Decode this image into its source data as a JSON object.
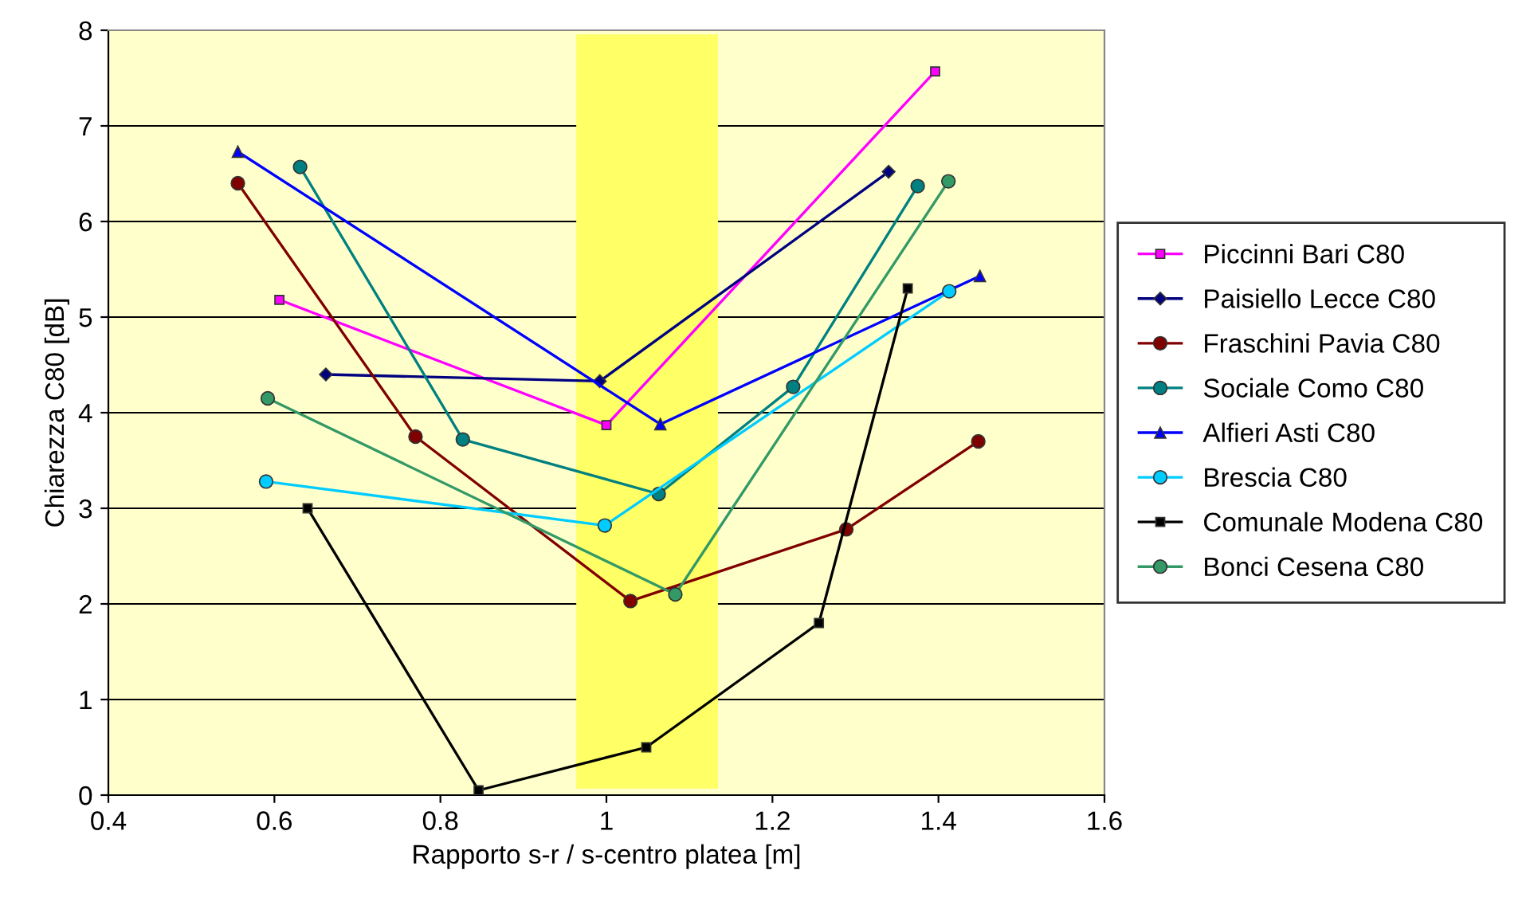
{
  "chart_data": {
    "type": "line",
    "xlabel": "Rapporto s-r / s-centro platea [m]",
    "ylabel": "Chiarezza C80 [dB]",
    "xlim": [
      0.4,
      1.6
    ],
    "xticks": [
      {
        "value": 0.4,
        "label": "0.4"
      },
      {
        "value": 0.6,
        "label": "0.6"
      },
      {
        "value": 0.8,
        "label": "0.8"
      },
      {
        "value": 1.0,
        "label": "1"
      },
      {
        "value": 1.2,
        "label": "1.2"
      },
      {
        "value": 1.4,
        "label": "1.4"
      },
      {
        "value": 1.6,
        "label": "1.6"
      }
    ],
    "ylim": [
      0,
      8
    ],
    "yticks": [
      0,
      1,
      2,
      3,
      4,
      5,
      6,
      7,
      8
    ],
    "grid": "y",
    "legend": "right",
    "bands": [
      {
        "axis": "x",
        "from": 0.965,
        "to": 1.133,
        "color": "#ffff66"
      }
    ],
    "series": [
      {
        "name": "Piccinni Bari C80",
        "color": "#ff00ff",
        "marker": "square",
        "x": [
          0.606,
          1.0,
          1.396
        ],
        "values": [
          5.18,
          3.87,
          7.57
        ]
      },
      {
        "name": "Paisiello Lecce C80",
        "color": "#000080",
        "marker": "diamond",
        "x": [
          0.662,
          0.992,
          1.34
        ],
        "values": [
          4.4,
          4.33,
          6.52
        ]
      },
      {
        "name": "Fraschini Pavia C80",
        "color": "#800000",
        "marker": "circle",
        "x": [
          0.556,
          0.77,
          1.029,
          1.289,
          1.448
        ],
        "values": [
          6.4,
          3.75,
          2.03,
          2.78,
          3.7
        ]
      },
      {
        "name": "Sociale Como C80",
        "color": "#008080",
        "marker": "circle",
        "x": [
          0.631,
          0.827,
          1.063,
          1.225,
          1.375
        ],
        "values": [
          6.57,
          3.72,
          3.15,
          4.27,
          6.37
        ]
      },
      {
        "name": "Alfieri Asti C80",
        "color": "#0000ff",
        "marker": "triangle",
        "x": [
          0.556,
          1.065,
          1.45
        ],
        "values": [
          6.73,
          3.88,
          5.43
        ]
      },
      {
        "name": "Brescia C80",
        "color": "#00ccff",
        "marker": "circle",
        "x": [
          0.59,
          0.998,
          1.413
        ],
        "values": [
          3.28,
          2.82,
          5.27
        ]
      },
      {
        "name": "Comunale Modena C80",
        "color": "#000000",
        "marker": "square",
        "x": [
          0.64,
          0.846,
          1.048,
          1.256,
          1.363
        ],
        "values": [
          3.0,
          0.05,
          0.5,
          1.8,
          5.3
        ]
      },
      {
        "name": "Bonci Cesena C80",
        "color": "#339966",
        "marker": "circle",
        "x": [
          0.592,
          1.083,
          1.412
        ],
        "values": [
          4.15,
          2.1,
          6.42
        ]
      }
    ]
  }
}
